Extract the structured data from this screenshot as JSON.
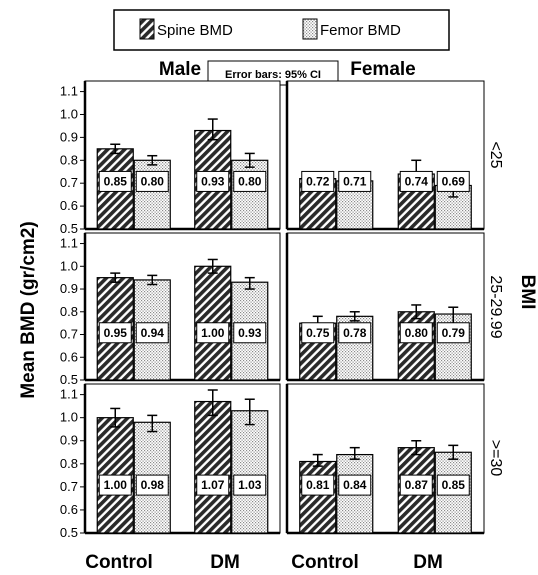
{
  "chart_data": {
    "type": "bar",
    "ylabel": "Mean BMD (gr/cm2)",
    "row_facet_label": "BMI",
    "error_bar_note": "Error bars: 95% CI",
    "ylim": [
      0.5,
      1.12
    ],
    "yticks": [
      "0.5",
      "0.6",
      "0.7",
      "0.8",
      "0.9",
      "1.0",
      "1.1"
    ],
    "categories": [
      "Control",
      "DM"
    ],
    "columns": [
      "Male",
      "Female"
    ],
    "rows": [
      "<25",
      "25-29.99",
      ">=30"
    ],
    "legend": {
      "placement": "top-center",
      "items": [
        {
          "name": "Spine BMD",
          "pattern": "diagonal-hatch"
        },
        {
          "name": "Femor BMD",
          "pattern": "dotted"
        }
      ]
    },
    "panels": [
      {
        "sex": "Male",
        "bmi": "<25",
        "categories": [
          "Control",
          "DM"
        ],
        "series": [
          {
            "name": "Spine BMD",
            "values": [
              0.85,
              0.93
            ],
            "labels": [
              "0.85",
              "0.93"
            ],
            "ci": [
              [
                0.83,
                0.87
              ],
              [
                0.89,
                0.98
              ]
            ]
          },
          {
            "name": "Femor BMD",
            "values": [
              0.8,
              0.8
            ],
            "labels": [
              "0.80",
              "0.80"
            ],
            "ci": [
              [
                0.78,
                0.82
              ],
              [
                0.77,
                0.83
              ]
            ]
          }
        ]
      },
      {
        "sex": "Female",
        "bmi": "<25",
        "categories": [
          "Control",
          "DM"
        ],
        "series": [
          {
            "name": "Spine BMD",
            "values": [
              0.72,
              0.74
            ],
            "labels": [
              "0.72",
              "0.74"
            ],
            "ci": [
              [
                0.68,
                0.75
              ],
              [
                0.68,
                0.8
              ]
            ]
          },
          {
            "name": "Femor BMD",
            "values": [
              0.71,
              0.69
            ],
            "labels": [
              "0.71",
              "0.69"
            ],
            "ci": [
              [
                0.68,
                0.74
              ],
              [
                0.64,
                0.73
              ]
            ]
          }
        ]
      },
      {
        "sex": "Male",
        "bmi": "25-29.99",
        "categories": [
          "Control",
          "DM"
        ],
        "series": [
          {
            "name": "Spine BMD",
            "values": [
              0.95,
              1.0
            ],
            "labels": [
              "0.95",
              "1.00"
            ],
            "ci": [
              [
                0.93,
                0.97
              ],
              [
                0.97,
                1.03
              ]
            ]
          },
          {
            "name": "Femor BMD",
            "values": [
              0.94,
              0.93
            ],
            "labels": [
              "0.94",
              "0.93"
            ],
            "ci": [
              [
                0.92,
                0.96
              ],
              [
                0.9,
                0.95
              ]
            ]
          }
        ]
      },
      {
        "sex": "Female",
        "bmi": "25-29.99",
        "categories": [
          "Control",
          "DM"
        ],
        "series": [
          {
            "name": "Spine BMD",
            "values": [
              0.75,
              0.8
            ],
            "labels": [
              "0.75",
              "0.80"
            ],
            "ci": [
              [
                0.73,
                0.78
              ],
              [
                0.77,
                0.83
              ]
            ]
          },
          {
            "name": "Femor BMD",
            "values": [
              0.78,
              0.79
            ],
            "labels": [
              "0.78",
              "0.79"
            ],
            "ci": [
              [
                0.76,
                0.8
              ],
              [
                0.75,
                0.82
              ]
            ]
          }
        ]
      },
      {
        "sex": "Male",
        "bmi": ">=30",
        "categories": [
          "Control",
          "DM"
        ],
        "series": [
          {
            "name": "Spine BMD",
            "values": [
              1.0,
              1.07
            ],
            "labels": [
              "1.00",
              "1.07"
            ],
            "ci": [
              [
                0.96,
                1.04
              ],
              [
                1.01,
                1.12
              ]
            ]
          },
          {
            "name": "Femor BMD",
            "values": [
              0.98,
              1.03
            ],
            "labels": [
              "0.98",
              "1.03"
            ],
            "ci": [
              [
                0.94,
                1.01
              ],
              [
                0.97,
                1.08
              ]
            ]
          }
        ]
      },
      {
        "sex": "Female",
        "bmi": ">=30",
        "categories": [
          "Control",
          "DM"
        ],
        "series": [
          {
            "name": "Spine BMD",
            "values": [
              0.81,
              0.87
            ],
            "labels": [
              "0.81",
              "0.87"
            ],
            "ci": [
              [
                0.79,
                0.84
              ],
              [
                0.84,
                0.9
              ]
            ]
          },
          {
            "name": "Femor BMD",
            "values": [
              0.84,
              0.85
            ],
            "labels": [
              "0.84",
              "0.85"
            ],
            "ci": [
              [
                0.82,
                0.87
              ],
              [
                0.82,
                0.88
              ]
            ]
          }
        ]
      }
    ]
  }
}
